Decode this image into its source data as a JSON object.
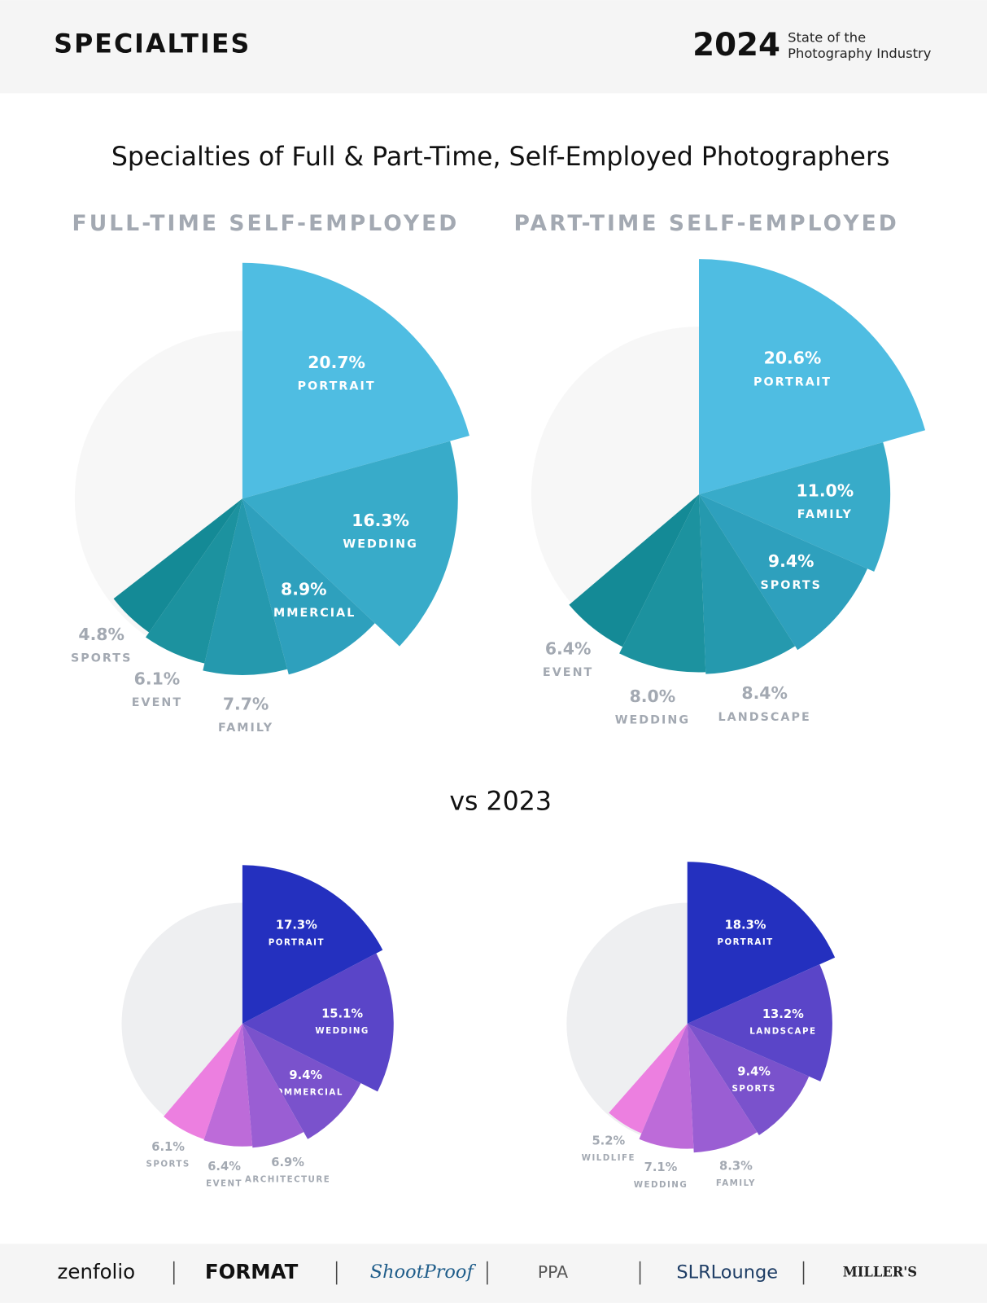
{
  "header": {
    "title": "SPECIALTIES",
    "year": "2024",
    "subtitle_line1": "State of the",
    "subtitle_line2": "Photography Industry"
  },
  "main_title": "Specialties of Full & Part-Time, Self-Employed Photographers",
  "comparison_label": "vs 2023",
  "chart_data": [
    {
      "type": "pie",
      "title": "FULL-TIME SELF-EMPLOYED",
      "categories": [
        "PORTRAIT",
        "WEDDING",
        "COMMERCIAL",
        "FAMILY",
        "EVENT",
        "SPORTS"
      ],
      "values": [
        20.7,
        16.3,
        8.9,
        7.7,
        6.1,
        4.8
      ],
      "value_labels": [
        "20.7%",
        "16.3%",
        "8.9%",
        "7.7%",
        "6.1%",
        "4.8%"
      ],
      "colors": [
        "#4fbde2",
        "#38abc9",
        "#2ea0bd",
        "#2599ae",
        "#1c929f",
        "#148a96"
      ]
    },
    {
      "type": "pie",
      "title": "PART-TIME SELF-EMPLOYED",
      "categories": [
        "PORTRAIT",
        "FAMILY",
        "SPORTS",
        "LANDSCAPE",
        "WEDDING",
        "EVENT"
      ],
      "values": [
        20.6,
        11.0,
        9.4,
        8.4,
        8.0,
        6.4
      ],
      "value_labels": [
        "20.6%",
        "11.0%",
        "9.4%",
        "8.4%",
        "8.0%",
        "6.4%"
      ],
      "colors": [
        "#4fbde2",
        "#38abc9",
        "#2ea0bd",
        "#2599ae",
        "#1c929f",
        "#148a96"
      ]
    },
    {
      "type": "pie",
      "categories": [
        "PORTRAIT",
        "WEDDING",
        "COMMERCIAL",
        "ARCHITECTURE",
        "EVENT",
        "SPORTS"
      ],
      "values": [
        17.3,
        15.1,
        9.4,
        6.9,
        6.4,
        6.1
      ],
      "value_labels": [
        "17.3%",
        "15.1%",
        "9.4%",
        "6.9%",
        "6.4%",
        "6.1%"
      ],
      "colors": [
        "#2430bf",
        "#5a45c8",
        "#7a52cc",
        "#9a5ed3",
        "#bd6bd9",
        "#ec7fe0"
      ]
    },
    {
      "type": "pie",
      "categories": [
        "PORTRAIT",
        "LANDSCAPE",
        "SPORTS",
        "FAMILY",
        "WEDDING",
        "WILDLIFE"
      ],
      "values": [
        18.3,
        13.2,
        9.4,
        8.3,
        7.1,
        5.2
      ],
      "value_labels": [
        "18.3%",
        "13.2%",
        "9.4%",
        "8.3%",
        "7.1%",
        "5.2%"
      ],
      "colors": [
        "#2430bf",
        "#5a45c8",
        "#7a52cc",
        "#9a5ed3",
        "#bd6bd9",
        "#ec7fe0"
      ]
    }
  ],
  "footer": {
    "logos": [
      "zenfolio",
      "FORMAT",
      "ShootProof",
      "PPA",
      "SLRLounge",
      "MILLER'S"
    ]
  }
}
